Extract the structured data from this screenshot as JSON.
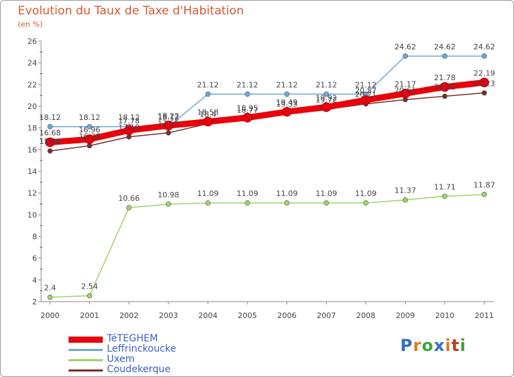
{
  "title": "Evolution du Taux de Taxe d'Habitation",
  "unit": "(en %)",
  "brand": {
    "letters": [
      "P",
      "r",
      "o",
      "x",
      "i",
      "t",
      "i"
    ],
    "colors": [
      "#2f6fc1",
      "#e07a1e",
      "#3ea33a",
      "#2f6fc1",
      "#e07a1e",
      "#c53a2e",
      "#3ea33a"
    ]
  },
  "chart_data": {
    "type": "line",
    "title": "Evolution du Taux de Taxe d'Habitation",
    "ylabel": "(en %)",
    "xlabel": "",
    "ylim": [
      2,
      26
    ],
    "yticks": [
      "2",
      "4",
      "6",
      "8",
      "10",
      "12",
      "14",
      "16",
      "18",
      "20",
      "22",
      "24",
      "26"
    ],
    "categories": [
      "2000",
      "2001",
      "2002",
      "2003",
      "2004",
      "2005",
      "2006",
      "2007",
      "2008",
      "2009",
      "2010",
      "2011"
    ],
    "series": [
      {
        "name": "TéTEGHEM",
        "color": "#e8000b",
        "weight": "thick",
        "values": [
          16.68,
          16.96,
          17.78,
          18.22,
          18.58,
          18.95,
          19.49,
          19.92,
          20.57,
          21.17,
          21.78,
          22.19
        ],
        "labels": [
          "16.68",
          "16.96",
          "17.78",
          "18.22",
          "18.58",
          "18.95",
          "19.49",
          "19.92",
          "20.57",
          "21.17",
          "21.78",
          "22.19"
        ]
      },
      {
        "name": "Leffrinckoucke",
        "color": "#6fa8d8",
        "weight": "thin",
        "values": [
          18.12,
          18.12,
          18.12,
          18.12,
          21.12,
          21.12,
          21.12,
          21.12,
          21.12,
          24.62,
          24.62,
          24.62
        ],
        "labels": [
          "18.12",
          "18.12",
          "18.12",
          "18.12",
          "21.12",
          "21.12",
          "21.12",
          "21.12",
          "21.12",
          "24.62",
          "24.62",
          "24.62"
        ]
      },
      {
        "name": "Uxem",
        "color": "#9ed36a",
        "weight": "thin",
        "values": [
          2.4,
          2.54,
          10.66,
          10.98,
          11.09,
          11.09,
          11.09,
          11.09,
          11.09,
          11.37,
          11.71,
          11.87
        ],
        "labels": [
          "2.4",
          "2.54",
          "10.66",
          "10.98",
          "11.09",
          "11.09",
          "11.09",
          "11.09",
          "11.09",
          "11.37",
          "11.71",
          "11.87"
        ]
      },
      {
        "name": "Coudekerque",
        "color": "#7b2d2d",
        "weight": "thin",
        "values": [
          15.88,
          16.36,
          17.18,
          17.55,
          18.4,
          18.77,
          19.33,
          19.72,
          20.21,
          20.61,
          20.92,
          21.23
        ],
        "labels": [
          "15.88",
          "16.36",
          "17.18",
          "17.55",
          "18.4",
          "18.77",
          "19.33",
          "19.72",
          "20.21",
          "20.61",
          "20.92",
          "21.23"
        ]
      }
    ],
    "legend_position": "bottom-left",
    "grid": false
  }
}
